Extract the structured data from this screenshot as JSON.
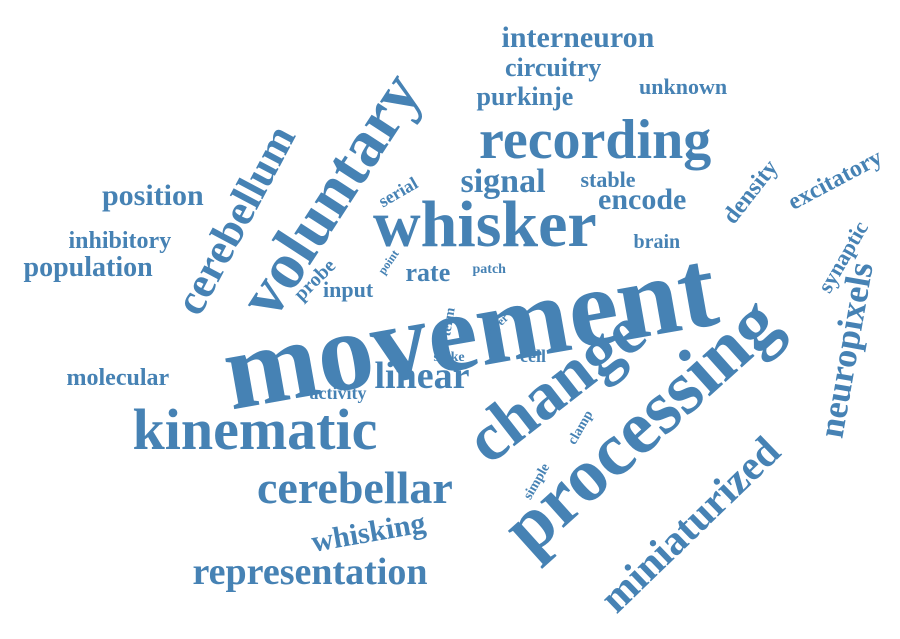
{
  "colors": {
    "word": "#4682b4",
    "background": "#ffffff"
  },
  "words": [
    {
      "id": "movement",
      "text": "movement"
    },
    {
      "id": "processing",
      "text": "processing"
    },
    {
      "id": "change",
      "text": "change"
    },
    {
      "id": "whisker",
      "text": "whisker"
    },
    {
      "id": "voluntary",
      "text": "voluntary"
    },
    {
      "id": "recording",
      "text": "recording"
    },
    {
      "id": "kinematic",
      "text": "kinematic"
    },
    {
      "id": "cerebellar",
      "text": "cerebellar"
    },
    {
      "id": "cerebellum",
      "text": "cerebellum"
    },
    {
      "id": "neuropixels",
      "text": "neuropixels"
    },
    {
      "id": "miniaturized",
      "text": "miniaturized"
    },
    {
      "id": "representation",
      "text": "representation"
    },
    {
      "id": "interneuron",
      "text": "interneuron"
    },
    {
      "id": "circuitry",
      "text": "circuitry"
    },
    {
      "id": "purkinje",
      "text": "purkinje"
    },
    {
      "id": "unknown",
      "text": "unknown"
    },
    {
      "id": "signal",
      "text": "signal"
    },
    {
      "id": "stable",
      "text": "stable"
    },
    {
      "id": "encode",
      "text": "encode"
    },
    {
      "id": "brain",
      "text": "brain"
    },
    {
      "id": "density",
      "text": "density"
    },
    {
      "id": "excitatory",
      "text": "excitatory"
    },
    {
      "id": "synaptic",
      "text": "synaptic"
    },
    {
      "id": "position",
      "text": "position"
    },
    {
      "id": "inhibitory",
      "text": "inhibitory"
    },
    {
      "id": "population",
      "text": "population"
    },
    {
      "id": "serial",
      "text": "serial"
    },
    {
      "id": "probe",
      "text": "probe"
    },
    {
      "id": "point",
      "text": "point"
    },
    {
      "id": "rate",
      "text": "rate"
    },
    {
      "id": "patch",
      "text": "patch"
    },
    {
      "id": "input",
      "text": "input"
    },
    {
      "id": "term",
      "text": "term"
    },
    {
      "id": "layer",
      "text": "layer"
    },
    {
      "id": "linear",
      "text": "linear"
    },
    {
      "id": "spike",
      "text": "spike"
    },
    {
      "id": "cell",
      "text": "cell"
    },
    {
      "id": "molecular",
      "text": "molecular"
    },
    {
      "id": "activity",
      "text": "activity"
    },
    {
      "id": "clamp",
      "text": "clamp"
    },
    {
      "id": "simple",
      "text": "simple"
    },
    {
      "id": "whisking",
      "text": "whisking"
    }
  ]
}
